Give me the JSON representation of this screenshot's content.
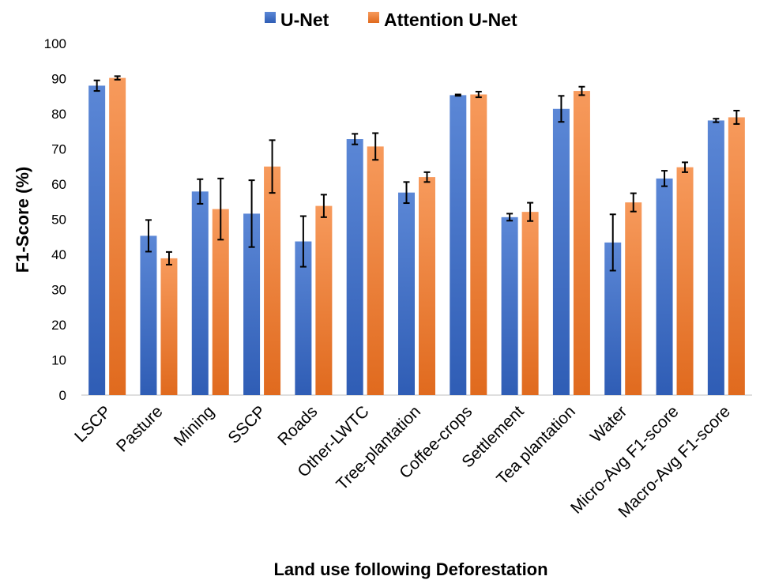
{
  "chart_data": {
    "type": "bar",
    "title": "",
    "xlabel": "Land use following Deforestation",
    "ylabel": "F1-Score (%)",
    "ylim": [
      0,
      100
    ],
    "yticks": [
      0,
      10,
      20,
      30,
      40,
      50,
      60,
      70,
      80,
      90,
      100
    ],
    "grid": false,
    "legend_position": "top-center",
    "categories": [
      "LSCP",
      "Pasture",
      "Mining",
      "SSCP",
      "Roads",
      "Other-LWTC",
      "Tree-plantation",
      "Coffee-crops",
      "Settlement",
      "Tea plantation",
      "Water",
      "Micro-Avg F1-score",
      "Macro-Avg F1-score"
    ],
    "series": [
      {
        "name": "U-Net",
        "color": "#4472C4",
        "values": [
          88.0,
          45.3,
          57.9,
          51.6,
          43.7,
          72.8,
          57.6,
          85.3,
          50.6,
          81.4,
          43.4,
          61.6,
          78.1
        ],
        "error": [
          1.5,
          4.5,
          3.5,
          9.5,
          7.2,
          1.5,
          3.0,
          0.2,
          1.0,
          3.7,
          8.0,
          2.2,
          0.5
        ]
      },
      {
        "name": "Attention U-Net",
        "color": "#ED7D31",
        "values": [
          90.2,
          38.9,
          52.9,
          65.0,
          53.8,
          70.7,
          62.0,
          85.5,
          52.1,
          86.5,
          54.8,
          64.8,
          79.0
        ],
        "error": [
          0.5,
          1.8,
          8.7,
          7.5,
          3.2,
          3.8,
          1.4,
          0.8,
          2.6,
          1.2,
          2.6,
          1.4,
          1.9
        ]
      }
    ]
  }
}
